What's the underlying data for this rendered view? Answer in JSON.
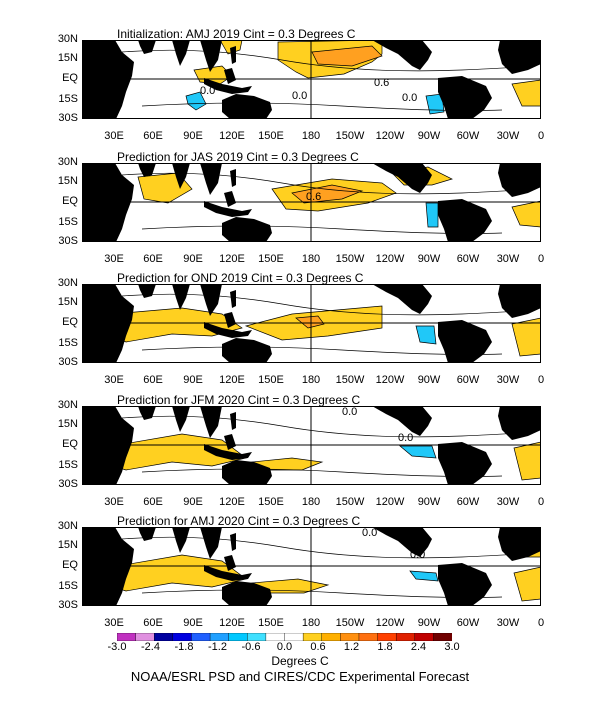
{
  "figure": {
    "contour_interval": "Cint = 0.3 Degrees C",
    "lat_labels": [
      "30N",
      "15N",
      "EQ",
      "15S",
      "30S"
    ],
    "lon_labels": [
      "30E",
      "60E",
      "90E",
      "120E",
      "150E",
      "180",
      "150W",
      "120W",
      "90W",
      "60W",
      "30W",
      "0"
    ],
    "panels": [
      {
        "title": "Initialization: AMJ 2019  Cint = 0.3 Degrees C",
        "contour_labels": [
          "0.0",
          "0.0",
          "0.6",
          "0.0"
        ]
      },
      {
        "title": "Prediction for JAS 2019   Cint = 0.3 Degrees C",
        "contour_labels": [
          "0.6"
        ]
      },
      {
        "title": "Prediction for OND 2019   Cint = 0.3 Degrees C",
        "contour_labels": []
      },
      {
        "title": "Prediction for JFM 2020   Cint = 0.3 Degrees C",
        "contour_labels": [
          "0.0",
          "0.0"
        ]
      },
      {
        "title": "Prediction for AMJ 2020   Cint = 0.3 Degrees C",
        "contour_labels": [
          "0.0",
          "0.0"
        ]
      }
    ]
  },
  "colorbar": {
    "labels": [
      "-3.0",
      "-2.4",
      "-1.8",
      "-1.2",
      "-0.6",
      "0.0",
      "0.6",
      "1.2",
      "1.8",
      "2.4",
      "3.0"
    ],
    "colors": [
      "#c030c0",
      "#e090e0",
      "#0000a0",
      "#0000e0",
      "#2060ff",
      "#20a0ff",
      "#00c8ff",
      "#40e0ff",
      "#ffffff",
      "#ffffff",
      "#ffd020",
      "#ffb000",
      "#ff9010",
      "#ff7010",
      "#ff4000",
      "#e02000",
      "#c00000",
      "#700000"
    ],
    "units": "Degrees C"
  },
  "credit": "NOAA/ESRL PSD and CIRES/CDC Experimental Forecast",
  "colors": {
    "warm": "#ffd020",
    "warm2": "#ffa020",
    "cool": "#20c8f8",
    "land": "#000000"
  }
}
